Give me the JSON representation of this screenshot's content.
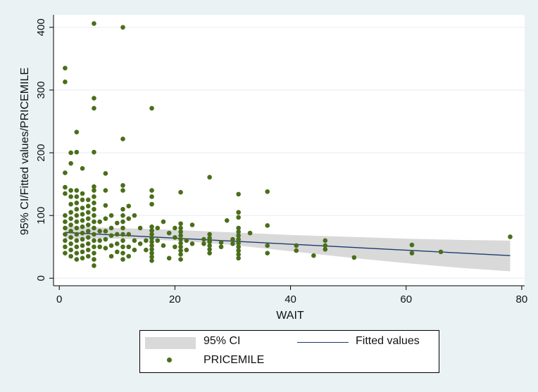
{
  "chart_data": {
    "type": "scatter",
    "title": "",
    "xlabel": "WAIT",
    "ylabel": "95% CI/Fitted values/PRICEMILE",
    "xlim": [
      -1,
      80.5
    ],
    "ylim": [
      -12,
      420
    ],
    "x_ticks": [
      0,
      20,
      40,
      60,
      80
    ],
    "y_ticks": [
      0,
      100,
      200,
      300,
      400
    ],
    "grid": true,
    "legend_position": "bottom",
    "legend": [
      "95% CI",
      "Fitted values",
      "PRICEMILE"
    ],
    "colors": {
      "points": "#4a6e1a",
      "fit_line": "#1a3c6e",
      "ci_band": "#d9d9d9",
      "plot_bg": "#ffffff",
      "page_bg": "#eaf2f3",
      "grid": "#e6eef0"
    },
    "fitted": {
      "x": [
        1,
        78
      ],
      "y": [
        73,
        36
      ]
    },
    "ci": {
      "x": [
        1,
        10,
        20,
        30,
        40,
        50,
        60,
        70,
        78
      ],
      "lower": [
        63,
        63,
        60,
        53,
        43,
        33,
        24,
        16,
        11
      ],
      "upper": [
        83,
        80,
        77,
        73,
        69,
        66,
        63,
        61,
        60
      ]
    },
    "series": [
      {
        "name": "PRICEMILE",
        "points": [
          [
            1,
            335
          ],
          [
            1,
            313
          ],
          [
            1,
            168
          ],
          [
            1,
            145
          ],
          [
            1,
            135
          ],
          [
            1,
            100
          ],
          [
            1,
            90
          ],
          [
            1,
            80
          ],
          [
            1,
            70
          ],
          [
            1,
            60
          ],
          [
            1,
            50
          ],
          [
            1,
            40
          ],
          [
            2,
            140
          ],
          [
            2,
            130
          ],
          [
            2,
            118
          ],
          [
            2,
            105
          ],
          [
            2,
            95
          ],
          [
            2,
            85
          ],
          [
            2,
            75
          ],
          [
            2,
            65
          ],
          [
            2,
            55
          ],
          [
            2,
            45
          ],
          [
            2,
            35
          ],
          [
            2,
            200
          ],
          [
            2,
            183
          ],
          [
            3,
            233
          ],
          [
            3,
            201
          ],
          [
            3,
            140
          ],
          [
            3,
            130
          ],
          [
            3,
            120
          ],
          [
            3,
            110
          ],
          [
            3,
            100
          ],
          [
            3,
            90
          ],
          [
            3,
            80
          ],
          [
            3,
            70
          ],
          [
            3,
            60
          ],
          [
            3,
            50
          ],
          [
            3,
            40
          ],
          [
            3,
            30
          ],
          [
            4,
            175
          ],
          [
            4,
            135
          ],
          [
            4,
            125
          ],
          [
            4,
            112
          ],
          [
            4,
            102
          ],
          [
            4,
            92
          ],
          [
            4,
            82
          ],
          [
            4,
            72
          ],
          [
            4,
            62
          ],
          [
            4,
            52
          ],
          [
            4,
            42
          ],
          [
            4,
            32
          ],
          [
            5,
            125
          ],
          [
            5,
            115
          ],
          [
            5,
            105
          ],
          [
            5,
            95
          ],
          [
            5,
            85
          ],
          [
            5,
            75
          ],
          [
            5,
            65
          ],
          [
            5,
            55
          ],
          [
            5,
            45
          ],
          [
            5,
            35
          ],
          [
            6,
            406
          ],
          [
            6,
            287
          ],
          [
            6,
            271
          ],
          [
            6,
            201
          ],
          [
            6,
            146
          ],
          [
            6,
            140
          ],
          [
            6,
            130
          ],
          [
            6,
            120
          ],
          [
            6,
            110
          ],
          [
            6,
            100
          ],
          [
            6,
            90
          ],
          [
            6,
            80
          ],
          [
            6,
            70
          ],
          [
            6,
            60
          ],
          [
            6,
            50
          ],
          [
            6,
            40
          ],
          [
            6,
            30
          ],
          [
            6,
            20
          ],
          [
            7,
            90
          ],
          [
            7,
            75
          ],
          [
            7,
            60
          ],
          [
            7,
            50
          ],
          [
            8,
            167
          ],
          [
            8,
            140
          ],
          [
            8,
            116
          ],
          [
            8,
            95
          ],
          [
            8,
            75
          ],
          [
            8,
            62
          ],
          [
            8,
            48
          ],
          [
            9,
            100
          ],
          [
            9,
            80
          ],
          [
            9,
            68
          ],
          [
            9,
            52
          ],
          [
            9,
            35
          ],
          [
            10,
            88
          ],
          [
            10,
            70
          ],
          [
            10,
            55
          ],
          [
            10,
            42
          ],
          [
            11,
            400
          ],
          [
            11,
            222
          ],
          [
            11,
            148
          ],
          [
            11,
            140
          ],
          [
            11,
            110
          ],
          [
            11,
            100
          ],
          [
            11,
            90
          ],
          [
            11,
            80
          ],
          [
            11,
            70
          ],
          [
            11,
            60
          ],
          [
            11,
            50
          ],
          [
            11,
            40
          ],
          [
            11,
            30
          ],
          [
            12,
            115
          ],
          [
            12,
            95
          ],
          [
            12,
            70
          ],
          [
            12,
            50
          ],
          [
            12,
            35
          ],
          [
            13,
            100
          ],
          [
            13,
            60
          ],
          [
            13,
            45
          ],
          [
            14,
            80
          ],
          [
            14,
            55
          ],
          [
            15,
            60
          ],
          [
            15,
            45
          ],
          [
            16,
            271
          ],
          [
            16,
            140
          ],
          [
            16,
            130
          ],
          [
            16,
            118
          ],
          [
            16,
            82
          ],
          [
            16,
            76
          ],
          [
            16,
            70
          ],
          [
            16,
            64
          ],
          [
            16,
            58
          ],
          [
            16,
            52
          ],
          [
            16,
            46
          ],
          [
            16,
            40
          ],
          [
            16,
            34
          ],
          [
            16,
            28
          ],
          [
            17,
            80
          ],
          [
            17,
            60
          ],
          [
            18,
            90
          ],
          [
            18,
            52
          ],
          [
            19,
            72
          ],
          [
            19,
            32
          ],
          [
            20,
            80
          ],
          [
            20,
            65
          ],
          [
            20,
            50
          ],
          [
            21,
            137
          ],
          [
            21,
            87
          ],
          [
            21,
            80
          ],
          [
            21,
            74
          ],
          [
            21,
            68
          ],
          [
            21,
            62
          ],
          [
            21,
            56
          ],
          [
            21,
            50
          ],
          [
            21,
            44
          ],
          [
            21,
            38
          ],
          [
            21,
            30
          ],
          [
            22,
            60
          ],
          [
            22,
            45
          ],
          [
            23,
            85
          ],
          [
            23,
            55
          ],
          [
            25,
            62
          ],
          [
            25,
            55
          ],
          [
            26,
            161
          ],
          [
            26,
            70
          ],
          [
            26,
            64
          ],
          [
            26,
            58
          ],
          [
            26,
            52
          ],
          [
            26,
            46
          ],
          [
            26,
            40
          ],
          [
            28,
            57
          ],
          [
            28,
            50
          ],
          [
            29,
            92
          ],
          [
            30,
            62
          ],
          [
            30,
            55
          ],
          [
            31,
            134
          ],
          [
            31,
            105
          ],
          [
            31,
            97
          ],
          [
            31,
            80
          ],
          [
            31,
            74
          ],
          [
            31,
            68
          ],
          [
            31,
            62
          ],
          [
            31,
            56
          ],
          [
            31,
            50
          ],
          [
            31,
            44
          ],
          [
            31,
            38
          ],
          [
            31,
            32
          ],
          [
            33,
            72
          ],
          [
            36,
            138
          ],
          [
            36,
            84
          ],
          [
            36,
            52
          ],
          [
            36,
            40
          ],
          [
            41,
            52
          ],
          [
            41,
            44
          ],
          [
            44,
            36
          ],
          [
            46,
            60
          ],
          [
            46,
            52
          ],
          [
            46,
            46
          ],
          [
            51,
            33
          ],
          [
            61,
            53
          ],
          [
            61,
            40
          ],
          [
            66,
            42
          ],
          [
            78,
            66
          ]
        ]
      }
    ]
  },
  "legend": {
    "ci_label": "95% CI",
    "fit_label": "Fitted values",
    "points_label": "PRICEMILE"
  }
}
